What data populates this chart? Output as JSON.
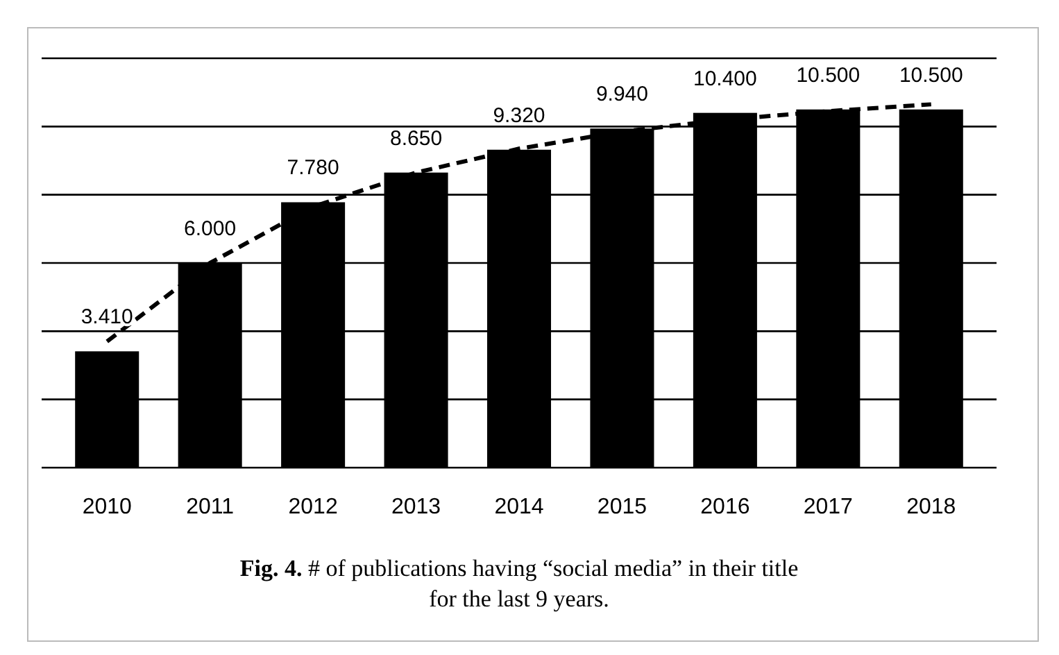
{
  "chart_data": {
    "type": "bar",
    "title": "Fig. 4. # of publications having “social media” in their title for the last 9 years.",
    "categories": [
      "2010",
      "2011",
      "2012",
      "2013",
      "2014",
      "2015",
      "2016",
      "2017",
      "2018"
    ],
    "series": [
      {
        "color": "#000000",
        "values": [
          3410,
          6000,
          7780,
          8650,
          9320,
          9940,
          10400,
          10500,
          10500
        ],
        "value_labels": [
          "3.410",
          "6.000",
          "7.780",
          "8.650",
          "9.320",
          "9.940",
          "10.400",
          "10.500",
          "10.500"
        ]
      },
      {
        "type": "line",
        "color": "#000000",
        "line_style": "dashed",
        "values": [
          3700,
          6000,
          7650,
          8650,
          9350,
          9850,
          10200,
          10450,
          10650
        ]
      }
    ],
    "ylim": [
      0,
      12000
    ],
    "yticks": [
      {
        "value": 0,
        "label": null
      },
      {
        "value": 2000,
        "label": null
      },
      {
        "value": 4000,
        "label": null
      },
      {
        "value": 6000,
        "label": null
      },
      {
        "value": 8000,
        "label": null
      },
      {
        "value": 10000,
        "label": null
      },
      {
        "value": 12000,
        "label": null
      }
    ],
    "grid": "y",
    "tick_labels": "x"
  }
}
